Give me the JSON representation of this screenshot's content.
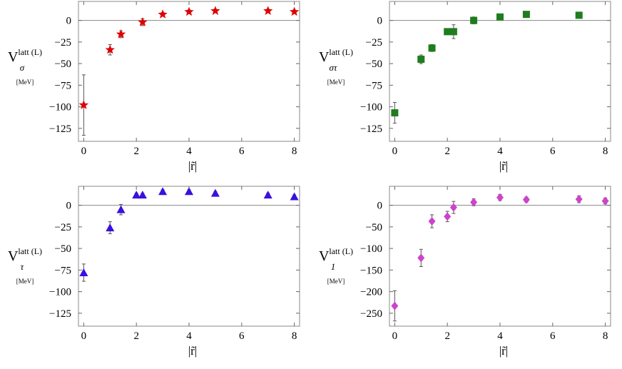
{
  "chart_data": [
    {
      "type": "scatter",
      "name_label": {
        "main": "V",
        "sup": "latt (L)",
        "sub": "σ",
        "unit": "[MeV]"
      },
      "xlabel": "|r̃|",
      "xlim": [
        -0.2,
        8.2
      ],
      "ylim": [
        -140,
        22
      ],
      "xticks": [
        "0",
        "2",
        "4",
        "6",
        "8"
      ],
      "yticks": [
        "0",
        "-25",
        "-50",
        "-75",
        "-100",
        "-125"
      ],
      "marker": "star",
      "color": "#e00000",
      "points": [
        {
          "x": 0,
          "y": -98,
          "err": 35
        },
        {
          "x": 1,
          "y": -34,
          "err": 6
        },
        {
          "x": 1.414,
          "y": -16,
          "err": 4
        },
        {
          "x": 2.236,
          "y": -2,
          "err": 4
        },
        {
          "x": 3,
          "y": 7,
          "err": 2
        },
        {
          "x": 4,
          "y": 10,
          "err": 2
        },
        {
          "x": 5,
          "y": 11,
          "err": 2
        },
        {
          "x": 7,
          "y": 11,
          "err": 2
        },
        {
          "x": 8,
          "y": 10,
          "err": 2
        }
      ]
    },
    {
      "type": "scatter",
      "name_label": {
        "main": "V",
        "sup": "latt (L)",
        "sub": "στ",
        "unit": "[MeV]"
      },
      "xlabel": "|r̃|",
      "xlim": [
        -0.2,
        8.2
      ],
      "ylim": [
        -140,
        22
      ],
      "xticks": [
        "0",
        "2",
        "4",
        "6",
        "8"
      ],
      "yticks": [
        "0",
        "-25",
        "-50",
        "-75",
        "-100",
        "-125"
      ],
      "marker": "square",
      "color": "#1f7d1f",
      "points": [
        {
          "x": 0,
          "y": -107,
          "err": 12
        },
        {
          "x": 1,
          "y": -45,
          "err": 5
        },
        {
          "x": 1.414,
          "y": -32,
          "err": 4
        },
        {
          "x": 2,
          "y": -13,
          "err": 3
        },
        {
          "x": 2.236,
          "y": -13,
          "err": 8
        },
        {
          "x": 3,
          "y": 0,
          "err": 4
        },
        {
          "x": 4,
          "y": 4,
          "err": 2
        },
        {
          "x": 5,
          "y": 7,
          "err": 2
        },
        {
          "x": 7,
          "y": 6,
          "err": 2
        }
      ]
    },
    {
      "type": "scatter",
      "name_label": {
        "main": "V",
        "sup": "latt (L)",
        "sub": "τ",
        "unit": "[MeV]"
      },
      "xlabel": "|r̃|",
      "xlim": [
        -0.2,
        8.2
      ],
      "ylim": [
        -140,
        22
      ],
      "xticks": [
        "0",
        "2",
        "4",
        "6",
        "8"
      ],
      "yticks": [
        "0",
        "-25",
        "-50",
        "-75",
        "-100",
        "-125"
      ],
      "marker": "triangle",
      "color": "#3a10e0",
      "points": [
        {
          "x": 0,
          "y": -78,
          "err": 10
        },
        {
          "x": 1,
          "y": -26,
          "err": 7
        },
        {
          "x": 1.414,
          "y": -5,
          "err": 6
        },
        {
          "x": 2,
          "y": 12,
          "err": 2
        },
        {
          "x": 2.236,
          "y": 12,
          "err": 2
        },
        {
          "x": 3,
          "y": 16,
          "err": 2
        },
        {
          "x": 4,
          "y": 16,
          "err": 2
        },
        {
          "x": 5,
          "y": 14,
          "err": 2
        },
        {
          "x": 7,
          "y": 12,
          "err": 2
        },
        {
          "x": 8,
          "y": 10,
          "err": 2
        }
      ]
    },
    {
      "type": "scatter",
      "name_label": {
        "main": "V",
        "sup": "latt (L)",
        "sub": "1",
        "unit": "[MeV]"
      },
      "xlabel": "|r̃|",
      "xlim": [
        -0.2,
        8.2
      ],
      "ylim": [
        -280,
        44
      ],
      "xticks": [
        "0",
        "2",
        "4",
        "6",
        "8"
      ],
      "yticks": [
        "0",
        "-50",
        "-100",
        "-150",
        "-200",
        "-250"
      ],
      "marker": "diamond",
      "color": "#cc44cc",
      "points": [
        {
          "x": 0,
          "y": -233,
          "err": 35
        },
        {
          "x": 1,
          "y": -122,
          "err": 20
        },
        {
          "x": 1.414,
          "y": -37,
          "err": 15
        },
        {
          "x": 2,
          "y": -26,
          "err": 12
        },
        {
          "x": 2.236,
          "y": -5,
          "err": 14
        },
        {
          "x": 3,
          "y": 7,
          "err": 8
        },
        {
          "x": 4,
          "y": 18,
          "err": 7
        },
        {
          "x": 5,
          "y": 13,
          "err": 6
        },
        {
          "x": 7,
          "y": 14,
          "err": 8
        },
        {
          "x": 8,
          "y": 10,
          "err": 7
        }
      ]
    }
  ]
}
